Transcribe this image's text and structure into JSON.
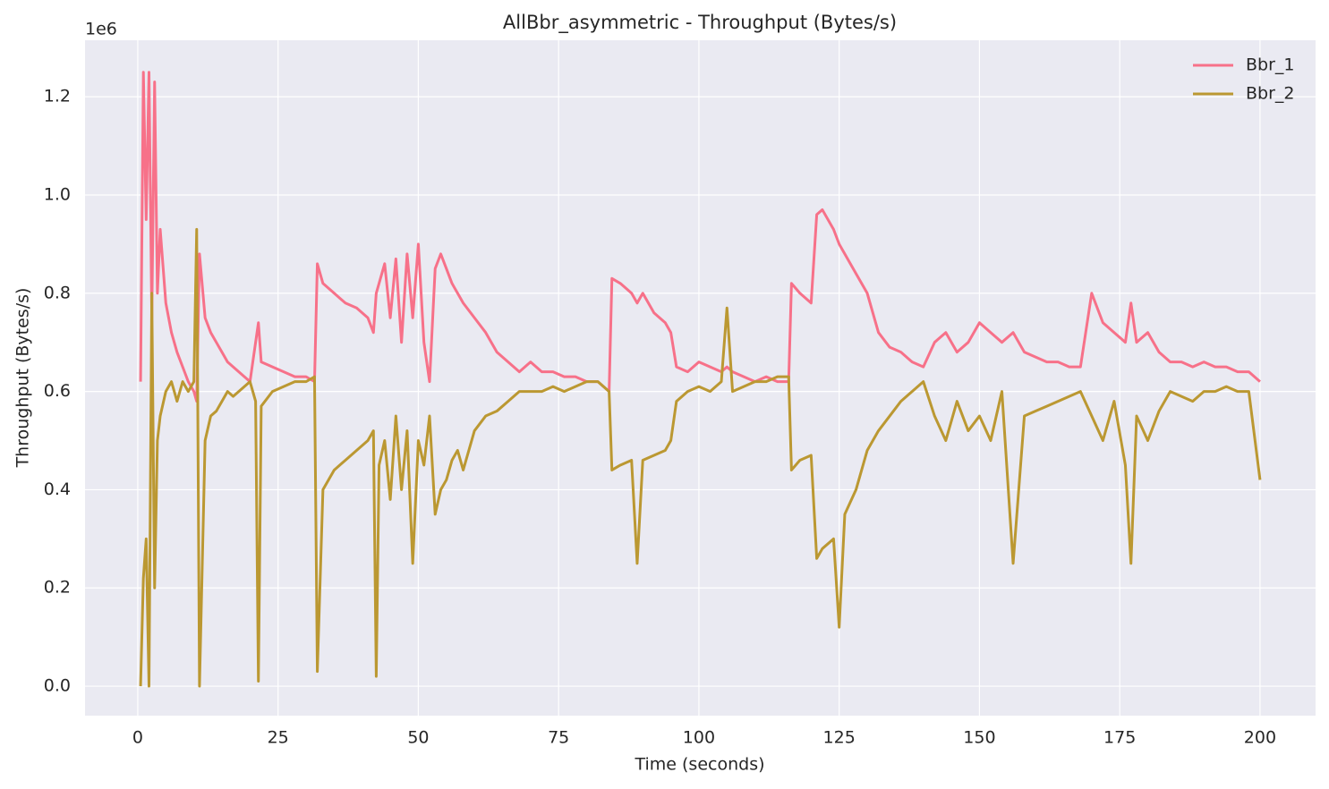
{
  "chart_data": {
    "type": "line",
    "title": "AllBbr_asymmetric - Throughput (Bytes/s)",
    "xlabel": "Time (seconds)",
    "ylabel": "Throughput (Bytes/s)",
    "y_offset_label": "1e6",
    "x": [
      0.5,
      1,
      1.5,
      2,
      2.5,
      3,
      3.5,
      4,
      5,
      6,
      7,
      8,
      9,
      10,
      10.5,
      11,
      12,
      13,
      14,
      15,
      16,
      17,
      18,
      19,
      20,
      21,
      21.5,
      22,
      24,
      26,
      28,
      30,
      31.5,
      32,
      33,
      35,
      37,
      39,
      41,
      42,
      42.5,
      43,
      44,
      45,
      46,
      47,
      48,
      49,
      50,
      51,
      52,
      53,
      54,
      55,
      56,
      57,
      58,
      60,
      62,
      64,
      66,
      68,
      70,
      72,
      74,
      76,
      78,
      80,
      82,
      84,
      84.5,
      86,
      88,
      89,
      90,
      92,
      94,
      95,
      96,
      98,
      100,
      102,
      104,
      105,
      106,
      108,
      110,
      112,
      114,
      116,
      116.5,
      118,
      120,
      121,
      122,
      124,
      125,
      126,
      128,
      130,
      132,
      134,
      136,
      138,
      140,
      142,
      144,
      146,
      148,
      150,
      152,
      154,
      156,
      158,
      160,
      162,
      164,
      166,
      168,
      170,
      172,
      174,
      176,
      177,
      178,
      180,
      182,
      184,
      186,
      188,
      190,
      192,
      194,
      196,
      198,
      200
    ],
    "series": [
      {
        "name": "Bbr_1",
        "color": "#f77189",
        "values": [
          0.62,
          1.25,
          0.95,
          1.25,
          0.75,
          1.23,
          0.8,
          0.93,
          0.78,
          0.72,
          0.68,
          0.65,
          0.62,
          0.6,
          0.58,
          0.88,
          0.75,
          0.72,
          0.7,
          0.68,
          0.66,
          0.65,
          0.64,
          0.63,
          0.62,
          0.7,
          0.74,
          0.66,
          0.65,
          0.64,
          0.63,
          0.63,
          0.62,
          0.86,
          0.82,
          0.8,
          0.78,
          0.77,
          0.75,
          0.72,
          0.8,
          0.82,
          0.86,
          0.75,
          0.87,
          0.7,
          0.88,
          0.75,
          0.9,
          0.7,
          0.62,
          0.85,
          0.88,
          0.85,
          0.82,
          0.8,
          0.78,
          0.75,
          0.72,
          0.68,
          0.66,
          0.64,
          0.66,
          0.64,
          0.64,
          0.63,
          0.63,
          0.62,
          0.62,
          0.6,
          0.83,
          0.82,
          0.8,
          0.78,
          0.8,
          0.76,
          0.74,
          0.72,
          0.65,
          0.64,
          0.66,
          0.65,
          0.64,
          0.65,
          0.64,
          0.63,
          0.62,
          0.63,
          0.62,
          0.62,
          0.82,
          0.8,
          0.78,
          0.96,
          0.97,
          0.93,
          0.9,
          0.88,
          0.84,
          0.8,
          0.72,
          0.69,
          0.68,
          0.66,
          0.65,
          0.7,
          0.72,
          0.68,
          0.7,
          0.74,
          0.72,
          0.7,
          0.72,
          0.68,
          0.67,
          0.66,
          0.66,
          0.65,
          0.65,
          0.8,
          0.74,
          0.72,
          0.7,
          0.78,
          0.7,
          0.72,
          0.68,
          0.66,
          0.66,
          0.65,
          0.66,
          0.65,
          0.65,
          0.64,
          0.64,
          0.62
        ]
      },
      {
        "name": "Bbr_2",
        "color": "#bb9832",
        "values": [
          0.0,
          0.22,
          0.3,
          0.0,
          0.8,
          0.2,
          0.5,
          0.55,
          0.6,
          0.62,
          0.58,
          0.62,
          0.6,
          0.62,
          0.93,
          0.0,
          0.5,
          0.55,
          0.56,
          0.58,
          0.6,
          0.59,
          0.6,
          0.61,
          0.62,
          0.58,
          0.01,
          0.57,
          0.6,
          0.61,
          0.62,
          0.62,
          0.63,
          0.03,
          0.4,
          0.44,
          0.46,
          0.48,
          0.5,
          0.52,
          0.02,
          0.45,
          0.5,
          0.38,
          0.55,
          0.4,
          0.52,
          0.25,
          0.5,
          0.45,
          0.55,
          0.35,
          0.4,
          0.42,
          0.46,
          0.48,
          0.44,
          0.52,
          0.55,
          0.56,
          0.58,
          0.6,
          0.6,
          0.6,
          0.61,
          0.6,
          0.61,
          0.62,
          0.62,
          0.6,
          0.44,
          0.45,
          0.46,
          0.25,
          0.46,
          0.47,
          0.48,
          0.5,
          0.58,
          0.6,
          0.61,
          0.6,
          0.62,
          0.77,
          0.6,
          0.61,
          0.62,
          0.62,
          0.63,
          0.63,
          0.44,
          0.46,
          0.47,
          0.26,
          0.28,
          0.3,
          0.12,
          0.35,
          0.4,
          0.48,
          0.52,
          0.55,
          0.58,
          0.6,
          0.62,
          0.55,
          0.5,
          0.58,
          0.52,
          0.55,
          0.5,
          0.6,
          0.25,
          0.55,
          0.56,
          0.57,
          0.58,
          0.59,
          0.6,
          0.55,
          0.5,
          0.58,
          0.45,
          0.25,
          0.55,
          0.5,
          0.56,
          0.6,
          0.59,
          0.58,
          0.6,
          0.6,
          0.61,
          0.6,
          0.6,
          0.42
        ]
      }
    ],
    "xlim": [
      -9.4,
      209.9
    ],
    "xticks": [
      0,
      25,
      50,
      75,
      100,
      125,
      150,
      175,
      200
    ],
    "ylim": [
      -0.06,
      1.315
    ],
    "yticks": [
      {
        "value": 0,
        "label": "0.0"
      },
      0.2,
      0.4,
      0.6,
      0.8,
      {
        "value": 1,
        "label": "1.0"
      },
      1.2
    ],
    "grid": true,
    "legend": "upper right"
  }
}
